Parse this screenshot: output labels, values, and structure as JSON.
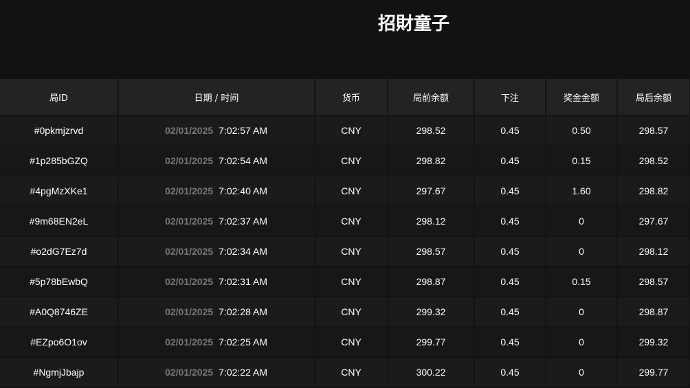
{
  "header": {
    "title": "招財童子"
  },
  "table": {
    "columns": [
      "局ID",
      "日期 / 时间",
      "货币",
      "局前余额",
      "下注",
      "奖金金额",
      "局后余额"
    ],
    "rows": [
      {
        "id": "#0pkmjzrvd",
        "date": "02/01/2025",
        "time": "7:02:57 AM",
        "currency": "CNY",
        "before": "298.52",
        "bet": "0.45",
        "win": "0.50",
        "after": "298.57"
      },
      {
        "id": "#1p285bGZQ",
        "date": "02/01/2025",
        "time": "7:02:54 AM",
        "currency": "CNY",
        "before": "298.82",
        "bet": "0.45",
        "win": "0.15",
        "after": "298.52"
      },
      {
        "id": "#4pgMzXKe1",
        "date": "02/01/2025",
        "time": "7:02:40 AM",
        "currency": "CNY",
        "before": "297.67",
        "bet": "0.45",
        "win": "1.60",
        "after": "298.82"
      },
      {
        "id": "#9m68EN2eL",
        "date": "02/01/2025",
        "time": "7:02:37 AM",
        "currency": "CNY",
        "before": "298.12",
        "bet": "0.45",
        "win": "0",
        "after": "297.67"
      },
      {
        "id": "#o2dG7Ez7d",
        "date": "02/01/2025",
        "time": "7:02:34 AM",
        "currency": "CNY",
        "before": "298.57",
        "bet": "0.45",
        "win": "0",
        "after": "298.12"
      },
      {
        "id": "#5p78bEwbQ",
        "date": "02/01/2025",
        "time": "7:02:31 AM",
        "currency": "CNY",
        "before": "298.87",
        "bet": "0.45",
        "win": "0.15",
        "after": "298.57"
      },
      {
        "id": "#A0Q8746ZE",
        "date": "02/01/2025",
        "time": "7:02:28 AM",
        "currency": "CNY",
        "before": "299.32",
        "bet": "0.45",
        "win": "0",
        "after": "298.87"
      },
      {
        "id": "#EZpo6O1ov",
        "date": "02/01/2025",
        "time": "7:02:25 AM",
        "currency": "CNY",
        "before": "299.77",
        "bet": "0.45",
        "win": "0",
        "after": "299.32"
      },
      {
        "id": "#NgmjJbajp",
        "date": "02/01/2025",
        "time": "7:02:22 AM",
        "currency": "CNY",
        "before": "300.22",
        "bet": "0.45",
        "win": "0",
        "after": "299.77"
      }
    ]
  }
}
